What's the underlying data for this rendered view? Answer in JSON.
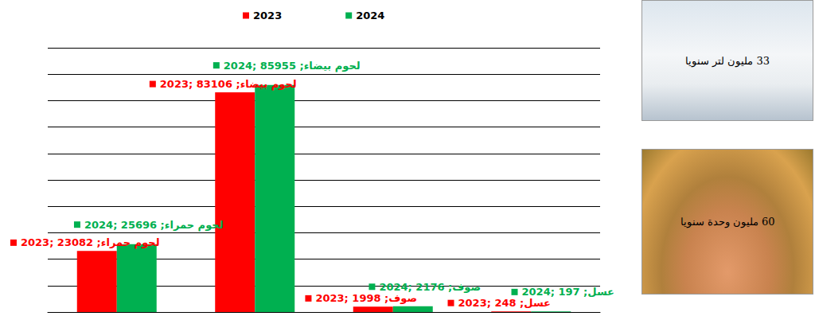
{
  "chart_data": {
    "type": "bar",
    "categories": [
      "لحوم حمراء",
      "لحوم بيضاء",
      "صوف",
      "عسل"
    ],
    "series": [
      {
        "name": "2023",
        "color": "#ff0000",
        "values": [
          23082,
          83106,
          1998,
          248
        ],
        "value_labels": [
          "2023; لحوم حمراء; 23082",
          "2023; لحوم بيضاء; 83106",
          "2023; صوف; 1998",
          "2023; عسل; 248"
        ]
      },
      {
        "name": "2024",
        "color": "#00b050",
        "values": [
          25696,
          85955,
          2176,
          197
        ],
        "value_labels": [
          "2024; لحوم حمراء; 25696",
          "2024; لحوم بيضاء; 85955",
          "2024; صوف; 2176",
          "2024; عسل; 197"
        ]
      }
    ],
    "ylim": [
      0,
      100000
    ],
    "yticks": [
      0,
      10000,
      20000,
      30000,
      40000,
      50000,
      60000,
      70000,
      80000,
      90000,
      100000
    ],
    "grid": true,
    "data_labels": true,
    "tick_labels": false,
    "legend": "top",
    "annotations": [
      "33 مليون لتر سنويا",
      "60 مليون وحدة سنويا"
    ]
  }
}
